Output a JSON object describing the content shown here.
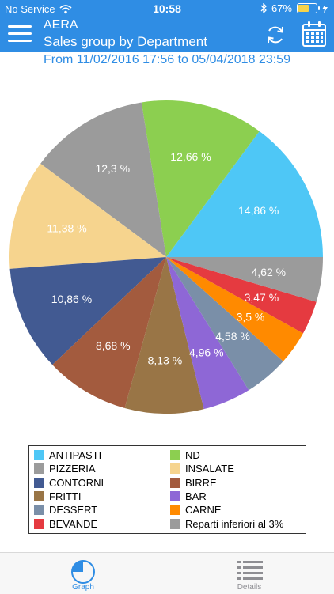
{
  "status": {
    "carrier": "No Service",
    "time": "10:58",
    "battery": "67%",
    "battery_level": 0.67
  },
  "header": {
    "app_name": "AERA",
    "title": "Sales group by Department"
  },
  "date_range": "From 11/02/2016 17:56 to 05/04/2018 23:59",
  "chart_data": {
    "type": "pie",
    "slices": [
      {
        "label": "ANTIPASTI",
        "value": 14.86,
        "display": "14,86 %",
        "color": "#4ec7f6"
      },
      {
        "label": "ND",
        "value": 12.66,
        "display": "12,66 %",
        "color": "#8ccf50"
      },
      {
        "label": "PIZZERIA",
        "value": 12.3,
        "display": "12,3 %",
        "color": "#9b9b9b"
      },
      {
        "label": "INSALATE",
        "value": 11.38,
        "display": "11,38 %",
        "color": "#f6d48e"
      },
      {
        "label": "CONTORNI",
        "value": 10.86,
        "display": "10,86 %",
        "color": "#425a92"
      },
      {
        "label": "BIRRE",
        "value": 8.68,
        "display": "8,68 %",
        "color": "#a35b3e"
      },
      {
        "label": "FRITTI",
        "value": 8.13,
        "display": "8,13 %",
        "color": "#997546"
      },
      {
        "label": "BAR",
        "value": 4.96,
        "display": "4,96 %",
        "color": "#8e67d6"
      },
      {
        "label": "DESSERT",
        "value": 4.58,
        "display": "4,58 %",
        "color": "#7a8fa8"
      },
      {
        "label": "CARNE",
        "value": 3.5,
        "display": "3,5 %",
        "color": "#ff8a00"
      },
      {
        "label": "BEVANDE",
        "value": 3.47,
        "display": "3,47 %",
        "color": "#e53a40"
      },
      {
        "label": "Reparti inferiori al 3%",
        "value": 4.62,
        "display": "4,62 %",
        "color": "#9b9b9b"
      }
    ]
  },
  "legend": [
    {
      "label": "ANTIPASTI",
      "color": "#4ec7f6"
    },
    {
      "label": "ND",
      "color": "#8ccf50"
    },
    {
      "label": "PIZZERIA",
      "color": "#9b9b9b"
    },
    {
      "label": "INSALATE",
      "color": "#f6d48e"
    },
    {
      "label": "CONTORNI",
      "color": "#425a92"
    },
    {
      "label": "BIRRE",
      "color": "#a35b3e"
    },
    {
      "label": "FRITTI",
      "color": "#997546"
    },
    {
      "label": "BAR",
      "color": "#8e67d6"
    },
    {
      "label": "DESSERT",
      "color": "#7a8fa8"
    },
    {
      "label": "CARNE",
      "color": "#ff8a00"
    },
    {
      "label": "BEVANDE",
      "color": "#e53a40"
    },
    {
      "label": "Reparti inferiori al 3%",
      "color": "#9b9b9b"
    }
  ],
  "tabs": [
    {
      "label": "Graph",
      "icon": "pie-chart-icon",
      "active": true
    },
    {
      "label": "Details",
      "icon": "list-icon",
      "active": false
    }
  ],
  "colors": {
    "accent": "#2f8de4",
    "inactive": "#8e8e93"
  }
}
